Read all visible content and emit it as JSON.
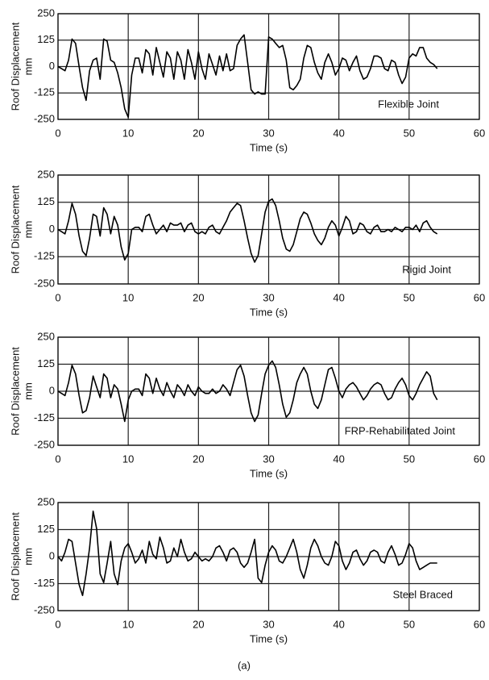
{
  "chart_data": [
    {
      "type": "line",
      "x_label": "Time (s)",
      "y_label": "Roof Displacement",
      "y_unit": "mm",
      "annotation": "Flexible Joint",
      "color": "#000000",
      "grid": true,
      "xlim": [
        0,
        60
      ],
      "xticks": [
        0,
        10,
        20,
        30,
        40,
        50,
        60
      ],
      "ylim": [
        -250,
        250
      ],
      "yticks": [
        -250,
        -125,
        0,
        125,
        250
      ],
      "x": [
        0,
        0.5,
        1,
        1.5,
        2,
        2.5,
        3,
        3.5,
        4,
        4.5,
        5,
        5.5,
        6,
        6.5,
        7,
        7.5,
        8,
        8.5,
        9,
        9.5,
        10,
        10.5,
        11,
        11.5,
        12,
        12.5,
        13,
        13.5,
        14,
        14.5,
        15,
        15.5,
        16,
        16.5,
        17,
        17.5,
        18,
        18.5,
        19,
        19.5,
        20,
        20.5,
        21,
        21.5,
        22,
        22.5,
        23,
        23.5,
        24,
        24.5,
        25,
        25.5,
        26,
        26.5,
        27,
        27.5,
        28,
        28.5,
        29,
        29.5,
        30,
        30.5,
        31,
        31.5,
        32,
        32.5,
        33,
        33.5,
        34,
        34.5,
        35,
        35.5,
        36,
        36.5,
        37,
        37.5,
        38,
        38.5,
        39,
        39.5,
        40,
        40.5,
        41,
        41.5,
        42,
        42.5,
        43,
        43.5,
        44,
        44.5,
        45,
        45.5,
        46,
        46.5,
        47,
        47.5,
        48,
        48.5,
        49,
        49.5,
        50,
        50.5,
        51,
        51.5,
        52,
        52.5,
        53,
        53.5,
        54
      ],
      "values": [
        0,
        -10,
        -20,
        30,
        130,
        110,
        0,
        -100,
        -160,
        -20,
        30,
        40,
        -60,
        130,
        120,
        30,
        20,
        -30,
        -100,
        -200,
        -240,
        -40,
        40,
        40,
        -30,
        80,
        60,
        -40,
        90,
        20,
        -50,
        70,
        40,
        -60,
        70,
        30,
        -60,
        80,
        20,
        -60,
        70,
        -10,
        -60,
        60,
        10,
        -40,
        50,
        -20,
        60,
        -20,
        -10,
        100,
        130,
        150,
        20,
        -110,
        -130,
        -120,
        -130,
        -130,
        140,
        130,
        110,
        90,
        100,
        30,
        -100,
        -110,
        -90,
        -60,
        40,
        100,
        90,
        20,
        -30,
        -60,
        20,
        60,
        20,
        -40,
        -10,
        40,
        30,
        -20,
        20,
        50,
        -20,
        -60,
        -50,
        -10,
        50,
        50,
        40,
        -10,
        -20,
        30,
        20,
        -40,
        -80,
        -50,
        40,
        60,
        50,
        90,
        90,
        40,
        20,
        10,
        -10
      ]
    },
    {
      "type": "line",
      "x_label": "Time (s)",
      "y_label": "Roof Displacement",
      "y_unit": "mm",
      "annotation": "Rigid Joint",
      "color": "#000000",
      "grid": true,
      "xlim": [
        0,
        60
      ],
      "xticks": [
        0,
        10,
        20,
        30,
        40,
        50,
        60
      ],
      "ylim": [
        -250,
        250
      ],
      "yticks": [
        -250,
        -125,
        0,
        125,
        250
      ],
      "x": [
        0,
        0.5,
        1,
        1.5,
        2,
        2.5,
        3,
        3.5,
        4,
        4.5,
        5,
        5.5,
        6,
        6.5,
        7,
        7.5,
        8,
        8.5,
        9,
        9.5,
        10,
        10.5,
        11,
        11.5,
        12,
        12.5,
        13,
        13.5,
        14,
        14.5,
        15,
        15.5,
        16,
        16.5,
        17,
        17.5,
        18,
        18.5,
        19,
        19.5,
        20,
        20.5,
        21,
        21.5,
        22,
        22.5,
        23,
        23.5,
        24,
        24.5,
        25,
        25.5,
        26,
        26.5,
        27,
        27.5,
        28,
        28.5,
        29,
        29.5,
        30,
        30.5,
        31,
        31.5,
        32,
        32.5,
        33,
        33.5,
        34,
        34.5,
        35,
        35.5,
        36,
        36.5,
        37,
        37.5,
        38,
        38.5,
        39,
        39.5,
        40,
        40.5,
        41,
        41.5,
        42,
        42.5,
        43,
        43.5,
        44,
        44.5,
        45,
        45.5,
        46,
        46.5,
        47,
        47.5,
        48,
        48.5,
        49,
        49.5,
        50,
        50.5,
        51,
        51.5,
        52,
        52.5,
        53,
        53.5,
        54
      ],
      "values": [
        0,
        -10,
        -20,
        40,
        120,
        70,
        -30,
        -100,
        -120,
        -40,
        70,
        60,
        -30,
        100,
        70,
        -20,
        60,
        20,
        -80,
        -140,
        -110,
        0,
        10,
        10,
        -10,
        60,
        70,
        20,
        -20,
        0,
        20,
        -10,
        30,
        20,
        20,
        30,
        -10,
        20,
        30,
        -10,
        -20,
        -10,
        -20,
        10,
        20,
        -10,
        -20,
        10,
        40,
        80,
        100,
        120,
        110,
        40,
        -40,
        -110,
        -150,
        -120,
        -20,
        80,
        130,
        140,
        110,
        40,
        -40,
        -90,
        -100,
        -70,
        -10,
        50,
        80,
        70,
        30,
        -20,
        -50,
        -70,
        -40,
        10,
        40,
        20,
        -30,
        10,
        60,
        40,
        -20,
        -10,
        30,
        20,
        -10,
        -20,
        10,
        20,
        -10,
        -10,
        0,
        -10,
        10,
        0,
        -10,
        10,
        10,
        0,
        20,
        -10,
        30,
        40,
        10,
        -10,
        -20
      ]
    },
    {
      "type": "line",
      "x_label": "Time (s)",
      "y_label": "Roof Displacement",
      "y_unit": "mm",
      "annotation": "FRP-Rehabilitated Joint",
      "color": "#000000",
      "grid": true,
      "xlim": [
        0,
        60
      ],
      "xticks": [
        0,
        10,
        20,
        30,
        40,
        50,
        60
      ],
      "ylim": [
        -250,
        250
      ],
      "yticks": [
        -250,
        -125,
        0,
        125,
        250
      ],
      "x": [
        0,
        0.5,
        1,
        1.5,
        2,
        2.5,
        3,
        3.5,
        4,
        4.5,
        5,
        5.5,
        6,
        6.5,
        7,
        7.5,
        8,
        8.5,
        9,
        9.5,
        10,
        10.5,
        11,
        11.5,
        12,
        12.5,
        13,
        13.5,
        14,
        14.5,
        15,
        15.5,
        16,
        16.5,
        17,
        17.5,
        18,
        18.5,
        19,
        19.5,
        20,
        20.5,
        21,
        21.5,
        22,
        22.5,
        23,
        23.5,
        24,
        24.5,
        25,
        25.5,
        26,
        26.5,
        27,
        27.5,
        28,
        28.5,
        29,
        29.5,
        30,
        30.5,
        31,
        31.5,
        32,
        32.5,
        33,
        33.5,
        34,
        34.5,
        35,
        35.5,
        36,
        36.5,
        37,
        37.5,
        38,
        38.5,
        39,
        39.5,
        40,
        40.5,
        41,
        41.5,
        42,
        42.5,
        43,
        43.5,
        44,
        44.5,
        45,
        45.5,
        46,
        46.5,
        47,
        47.5,
        48,
        48.5,
        49,
        49.5,
        50,
        50.5,
        51,
        51.5,
        52,
        52.5,
        53,
        53.5,
        54
      ],
      "values": [
        0,
        -10,
        -20,
        40,
        120,
        80,
        -20,
        -100,
        -90,
        -30,
        70,
        20,
        -30,
        80,
        60,
        -30,
        30,
        10,
        -60,
        -140,
        -40,
        0,
        10,
        10,
        -20,
        80,
        60,
        -10,
        60,
        10,
        -20,
        40,
        0,
        -30,
        30,
        10,
        -20,
        30,
        0,
        -20,
        20,
        0,
        -10,
        -10,
        10,
        -10,
        0,
        30,
        10,
        -20,
        40,
        100,
        120,
        70,
        -20,
        -100,
        -140,
        -110,
        -10,
        80,
        120,
        140,
        110,
        30,
        -60,
        -120,
        -100,
        -40,
        40,
        80,
        110,
        80,
        0,
        -60,
        -80,
        -40,
        30,
        100,
        110,
        60,
        0,
        -30,
        10,
        30,
        40,
        20,
        -10,
        -40,
        -20,
        10,
        30,
        40,
        30,
        -10,
        -40,
        -30,
        10,
        40,
        60,
        30,
        -20,
        -40,
        -10,
        30,
        60,
        90,
        70,
        -10,
        -40
      ]
    },
    {
      "type": "line",
      "x_label": "Time (s)",
      "y_label": "Roof Displacement",
      "y_unit": "mm",
      "annotation": "Steel Braced",
      "color": "#000000",
      "grid": true,
      "xlim": [
        0,
        60
      ],
      "xticks": [
        0,
        10,
        20,
        30,
        40,
        50,
        60
      ],
      "ylim": [
        -250,
        250
      ],
      "yticks": [
        -250,
        -125,
        0,
        125,
        250
      ],
      "x": [
        0,
        0.5,
        1,
        1.5,
        2,
        2.5,
        3,
        3.5,
        4,
        4.5,
        5,
        5.5,
        6,
        6.5,
        7,
        7.5,
        8,
        8.5,
        9,
        9.5,
        10,
        10.5,
        11,
        11.5,
        12,
        12.5,
        13,
        13.5,
        14,
        14.5,
        15,
        15.5,
        16,
        16.5,
        17,
        17.5,
        18,
        18.5,
        19,
        19.5,
        20,
        20.5,
        21,
        21.5,
        22,
        22.5,
        23,
        23.5,
        24,
        24.5,
        25,
        25.5,
        26,
        26.5,
        27,
        27.5,
        28,
        28.5,
        29,
        29.5,
        30,
        30.5,
        31,
        31.5,
        32,
        32.5,
        33,
        33.5,
        34,
        34.5,
        35,
        35.5,
        36,
        36.5,
        37,
        37.5,
        38,
        38.5,
        39,
        39.5,
        40,
        40.5,
        41,
        41.5,
        42,
        42.5,
        43,
        43.5,
        44,
        44.5,
        45,
        45.5,
        46,
        46.5,
        47,
        47.5,
        48,
        48.5,
        49,
        49.5,
        50,
        50.5,
        51,
        51.5,
        52,
        52.5,
        53,
        53.5,
        54
      ],
      "values": [
        0,
        -20,
        20,
        80,
        70,
        -30,
        -130,
        -180,
        -80,
        40,
        210,
        130,
        -80,
        -120,
        -30,
        70,
        -80,
        -130,
        -20,
        40,
        60,
        20,
        -30,
        -10,
        30,
        -30,
        70,
        10,
        -10,
        90,
        40,
        -30,
        -20,
        40,
        0,
        80,
        20,
        -20,
        -10,
        20,
        0,
        -20,
        -10,
        -20,
        0,
        40,
        50,
        20,
        -20,
        30,
        40,
        20,
        -30,
        -50,
        -30,
        20,
        80,
        -100,
        -120,
        -40,
        20,
        50,
        30,
        -20,
        -30,
        0,
        40,
        80,
        20,
        -60,
        -100,
        -40,
        40,
        80,
        50,
        0,
        -30,
        -40,
        0,
        70,
        50,
        -20,
        -60,
        -30,
        20,
        30,
        -10,
        -40,
        -20,
        20,
        30,
        20,
        -20,
        -30,
        20,
        50,
        10,
        -40,
        -30,
        10,
        60,
        40,
        -20,
        -60,
        -50,
        -40,
        -30,
        -30,
        -30
      ]
    }
  ],
  "caption": "(a)"
}
